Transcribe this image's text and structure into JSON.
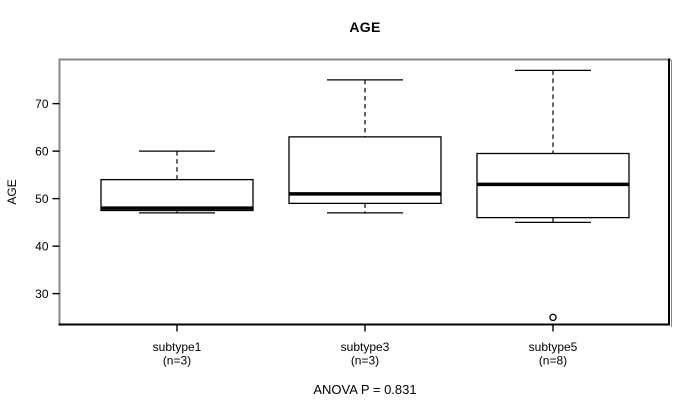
{
  "colors": {
    "ink": "#000000",
    "frame_gray": "#878787",
    "background": "#ffffff"
  },
  "chart_data": {
    "type": "boxplot",
    "title": "AGE",
    "ylabel": "AGE",
    "xlabel": "",
    "annotation": "ANOVA P = 0.831",
    "ylim": [
      23.5,
      79.5
    ],
    "yticks": [
      30,
      40,
      50,
      60,
      70
    ],
    "grid": "off",
    "groups": [
      {
        "label": "subtype1",
        "sublabel": "(n=3)",
        "whisker_low": 47,
        "q1": 47.5,
        "median": 48,
        "q3": 54,
        "whisker_high": 60,
        "outliers": []
      },
      {
        "label": "subtype3",
        "sublabel": "(n=3)",
        "whisker_low": 47,
        "q1": 49,
        "median": 51,
        "q3": 63,
        "whisker_high": 75,
        "outliers": []
      },
      {
        "label": "subtype5",
        "sublabel": "(n=8)",
        "whisker_low": 45,
        "q1": 46,
        "median": 53,
        "q3": 59.5,
        "whisker_high": 77,
        "outliers": [
          25
        ]
      }
    ]
  }
}
